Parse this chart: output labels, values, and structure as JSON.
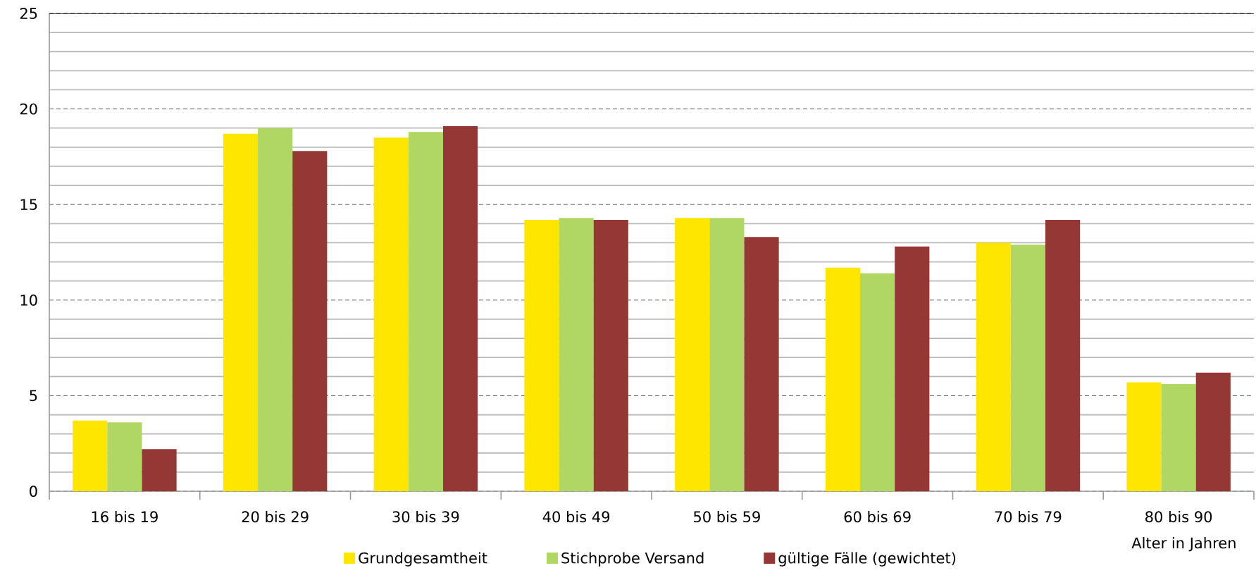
{
  "chart_data": {
    "type": "bar",
    "xlabel": "Alter in Jahren",
    "categories": [
      "16 bis 19",
      "20 bis 29",
      "30 bis 39",
      "40 bis 49",
      "50 bis 59",
      "60 bis 69",
      "70 bis 79",
      "80 bis 90"
    ],
    "series": [
      {
        "name": "Grundgesamtheit",
        "color": "#ffe600",
        "values": [
          3.7,
          18.7,
          18.5,
          14.2,
          14.3,
          11.7,
          13.0,
          5.7
        ]
      },
      {
        "name": "Stichprobe Versand",
        "color": "#b0d763",
        "values": [
          3.6,
          19.0,
          18.8,
          14.3,
          14.3,
          11.4,
          12.9,
          5.6
        ]
      },
      {
        "name": "gültige Fälle (gewichtet)",
        "color": "#953735",
        "values": [
          2.2,
          17.8,
          19.1,
          14.2,
          13.3,
          12.8,
          14.2,
          6.2
        ]
      }
    ],
    "ylim": [
      0,
      25
    ],
    "yticks": [
      0,
      5,
      10,
      15,
      20,
      25
    ],
    "grid": "y",
    "legend": "bottom"
  }
}
